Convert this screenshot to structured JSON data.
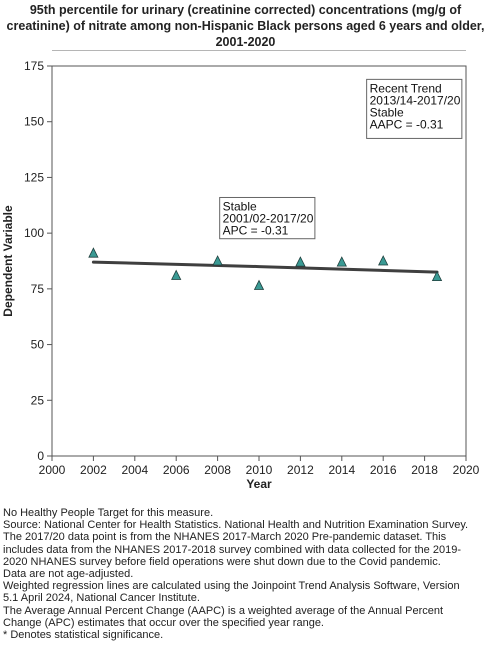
{
  "title_lines": [
    "95th percentile for urinary (creatinine corrected) concentrations (mg/g of",
    "creatinine) of nitrate among  non-Hispanic Black persons aged 6 years and older,",
    "2001-2020"
  ],
  "chart_data": {
    "type": "scatter",
    "xlabel": "Year",
    "ylabel": "Dependent Variable",
    "xlim": [
      2000,
      2020
    ],
    "ylim": [
      0,
      175
    ],
    "x_ticks": [
      2000,
      2002,
      2004,
      2006,
      2008,
      2010,
      2012,
      2014,
      2016,
      2018,
      2020
    ],
    "y_ticks": [
      0,
      25,
      50,
      75,
      100,
      125,
      150,
      175
    ],
    "grid": false,
    "series": [
      {
        "marker": "triangle",
        "color": "#3a9a94",
        "x": [
          2002,
          2006,
          2008,
          2010,
          2012,
          2014,
          2016,
          2018.6
        ],
        "y": [
          91,
          81,
          87.5,
          76.5,
          87,
          87,
          87.5,
          80.5
        ]
      }
    ],
    "regression": {
      "color": "#3f3f3f",
      "x": [
        2002,
        2010,
        2018.6
      ],
      "y": [
        87,
        85,
        82.5
      ]
    },
    "annotations": [
      {
        "lines": [
          "Recent Trend",
          "2013/14-2017/20",
          "Stable",
          "AAPC = -0.31"
        ],
        "x_at": 2015.2,
        "y_at": 169,
        "width_years": 4.6,
        "height_units": 26.5
      },
      {
        "lines": [
          "Stable",
          "2001/02-2017/20",
          "APC = -0.31"
        ],
        "x_at": 2008.1,
        "y_at": 116,
        "width_years": 4.6,
        "height_units": 18.5
      }
    ]
  },
  "notes": [
    "No Healthy People Target for this measure.",
    "Source: National Center for Health Statistics. National Health and Nutrition Examination Survey.",
    "The 2017/20 data point is from the NHANES 2017-March 2020 Pre-pandemic dataset. This",
    "includes data from the NHANES 2017-2018 survey combined with data collected for the 2019-",
    "2020 NHANES survey before field operations were shut down due to the Covid pandemic.",
    "Data are not age-adjusted.",
    "Weighted regression lines are calculated using the Joinpoint Trend Analysis Software, Version",
    "5.1 April 2024, National Cancer Institute.",
    "The Average Annual Percent Change (AAPC) is a weighted average of the Annual Percent",
    "Change (APC) estimates that occur over the specified year range.",
    "* Denotes statistical significance."
  ]
}
